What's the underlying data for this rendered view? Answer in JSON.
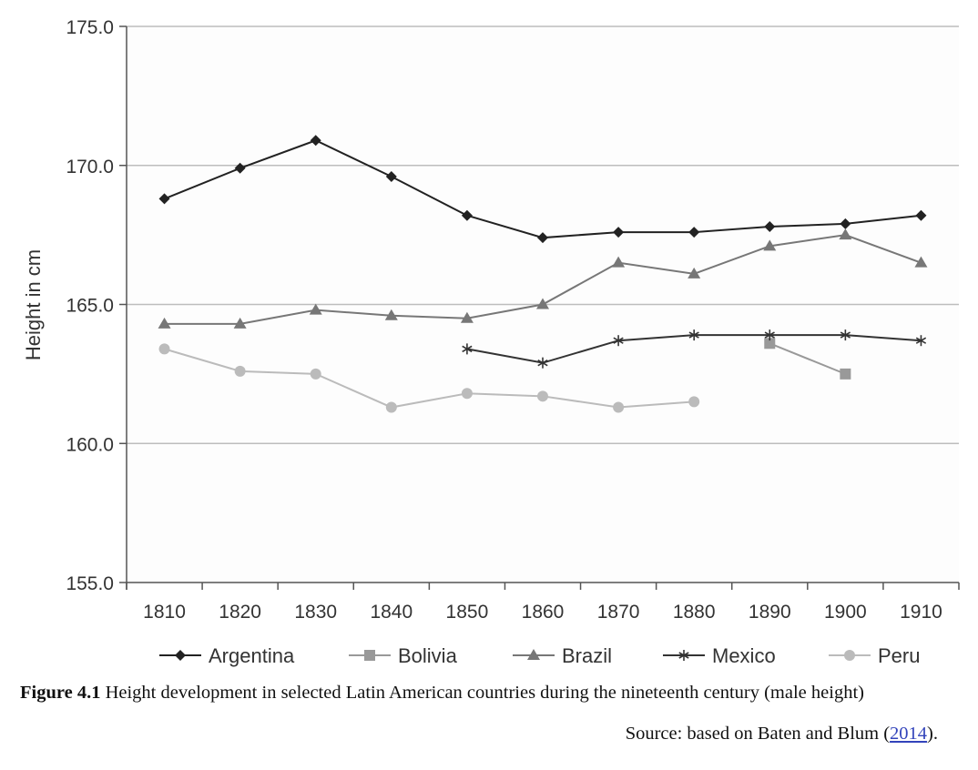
{
  "chart_data": {
    "type": "line",
    "xlabel": "",
    "ylabel": "Height in cm",
    "ylim": [
      155,
      175
    ],
    "yticks": [
      "155.0",
      "160.0",
      "165.0",
      "170.0",
      "175.0"
    ],
    "x": [
      1810,
      1820,
      1830,
      1840,
      1850,
      1860,
      1870,
      1880,
      1890,
      1900,
      1910
    ],
    "xticks": [
      "1810",
      "1820",
      "1830",
      "1840",
      "1850",
      "1860",
      "1870",
      "1880",
      "1890",
      "1900",
      "1910"
    ],
    "grid": "horizontal",
    "legend": "bottom",
    "series": [
      {
        "name": "Argentina",
        "marker": "diamond",
        "color": "#222222",
        "values": [
          168.8,
          169.9,
          170.9,
          169.6,
          168.2,
          167.4,
          167.6,
          167.6,
          167.8,
          167.9,
          168.2
        ]
      },
      {
        "name": "Bolivia",
        "marker": "square",
        "color": "#999999",
        "values": [
          null,
          null,
          null,
          null,
          null,
          null,
          null,
          null,
          163.6,
          162.5,
          null
        ]
      },
      {
        "name": "Brazil",
        "marker": "triangle",
        "color": "#777777",
        "values": [
          164.3,
          164.3,
          164.8,
          164.6,
          164.5,
          165.0,
          166.5,
          166.1,
          167.1,
          167.5,
          166.5
        ]
      },
      {
        "name": "Mexico",
        "marker": "asterisk",
        "color": "#333333",
        "values": [
          null,
          null,
          null,
          null,
          163.4,
          162.9,
          163.7,
          163.9,
          163.9,
          163.9,
          163.7
        ]
      },
      {
        "name": "Peru",
        "marker": "circle",
        "color": "#bbbbbb",
        "values": [
          163.4,
          162.6,
          162.5,
          161.3,
          161.8,
          161.7,
          161.3,
          161.5,
          null,
          null,
          null
        ]
      }
    ]
  },
  "caption": {
    "label": "Figure 4.1",
    "text": "Height development in selected Latin American countries during the nineteenth century (male height)"
  },
  "source": {
    "prefix": "Source: based on Baten and Blum (",
    "link": "2014",
    "suffix": ")."
  }
}
